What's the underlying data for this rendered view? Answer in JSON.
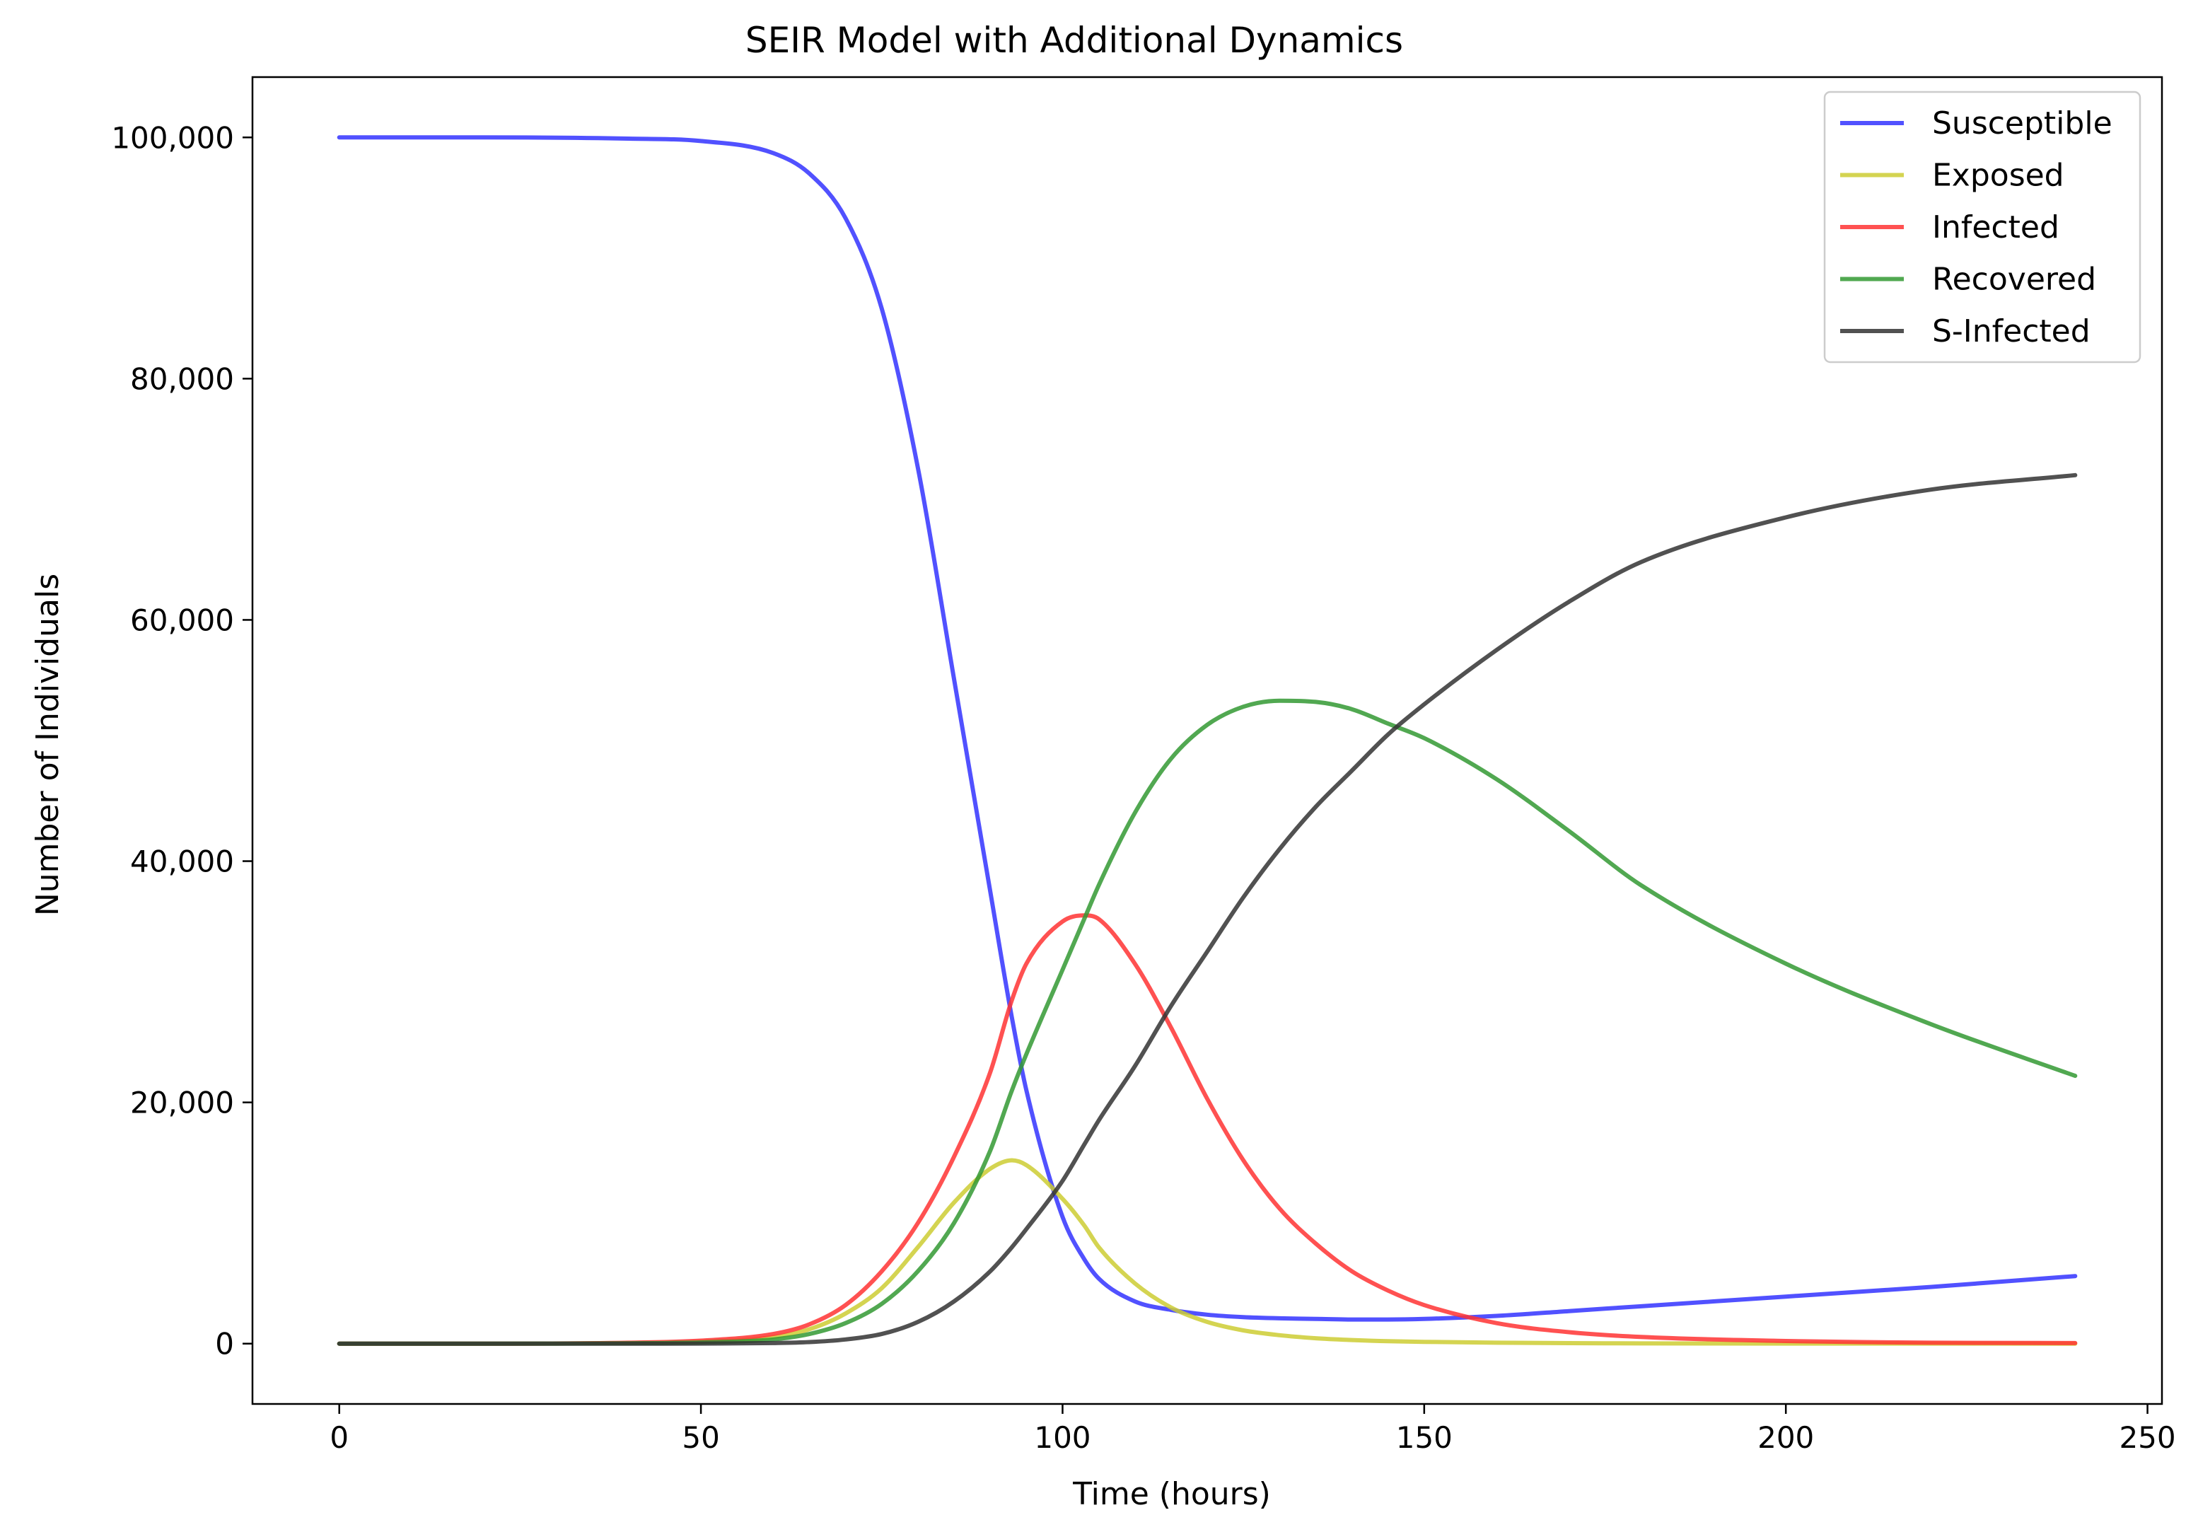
{
  "chart_data": {
    "type": "line",
    "title": "SEIR Model with Additional Dynamics",
    "xlabel": "Time (hours)",
    "ylabel": "Number of Individuals",
    "xlim": [
      -12,
      252
    ],
    "ylim": [
      -5000,
      105000
    ],
    "xticks": [
      0,
      50,
      100,
      150,
      200,
      250
    ],
    "xtick_labels": [
      "0",
      "50",
      "100",
      "150",
      "200",
      "250"
    ],
    "yticks": [
      0,
      20000,
      40000,
      60000,
      80000,
      100000
    ],
    "ytick_labels": [
      "0",
      "20,000",
      "40,000",
      "60,000",
      "80,000",
      "100,000"
    ],
    "grid": false,
    "legend_position": "top-right",
    "x": [
      0,
      20,
      40,
      50,
      60,
      65,
      70,
      75,
      80,
      85,
      90,
      93,
      95,
      100,
      103,
      105,
      110,
      115,
      120,
      125,
      130,
      135,
      140,
      145,
      150,
      160,
      170,
      180,
      200,
      220,
      240
    ],
    "series": [
      {
        "name": "Susceptible",
        "color": "#3333ff",
        "values": [
          100000,
          100000,
          99900,
          99700,
          98700,
          97000,
          93300,
          85800,
          72600,
          55100,
          37500,
          27000,
          21000,
          10500,
          7000,
          5400,
          3500,
          2800,
          2400,
          2200,
          2100,
          2050,
          2000,
          2000,
          2050,
          2300,
          2700,
          3100,
          3900,
          4700,
          5600
        ]
      },
      {
        "name": "Exposed",
        "color": "#cccc33",
        "values": [
          0,
          0,
          50,
          150,
          550,
          1200,
          2500,
          4600,
          8000,
          11700,
          14500,
          15200,
          14800,
          12000,
          9800,
          8000,
          5000,
          3000,
          1800,
          1100,
          700,
          450,
          300,
          200,
          150,
          80,
          40,
          20,
          10,
          5,
          0
        ]
      },
      {
        "name": "Infected",
        "color": "#ff3333",
        "values": [
          0,
          0,
          80,
          250,
          800,
          1600,
          3200,
          6000,
          10000,
          15500,
          22500,
          28500,
          31500,
          35000,
          35500,
          35200,
          31500,
          26200,
          20300,
          15200,
          11200,
          8300,
          6000,
          4400,
          3200,
          1700,
          950,
          550,
          220,
          80,
          50
        ]
      },
      {
        "name": "Recovered",
        "color": "#339933",
        "values": [
          0,
          0,
          30,
          100,
          350,
          800,
          1700,
          3300,
          6000,
          10000,
          16000,
          21000,
          24000,
          31000,
          35200,
          38000,
          44000,
          48500,
          51300,
          52800,
          53300,
          53200,
          52600,
          51400,
          50200,
          46800,
          42500,
          38000,
          31500,
          26500,
          22200
        ]
      },
      {
        "name": "S-Infected",
        "color": "#333333",
        "values": [
          0,
          0,
          0,
          10,
          50,
          130,
          350,
          800,
          1800,
          3500,
          6000,
          8000,
          9500,
          13500,
          16500,
          18500,
          23000,
          28000,
          32500,
          37000,
          41000,
          44500,
          47500,
          50500,
          53000,
          57500,
          61500,
          64800,
          68500,
          70800,
          72000
        ]
      }
    ]
  }
}
